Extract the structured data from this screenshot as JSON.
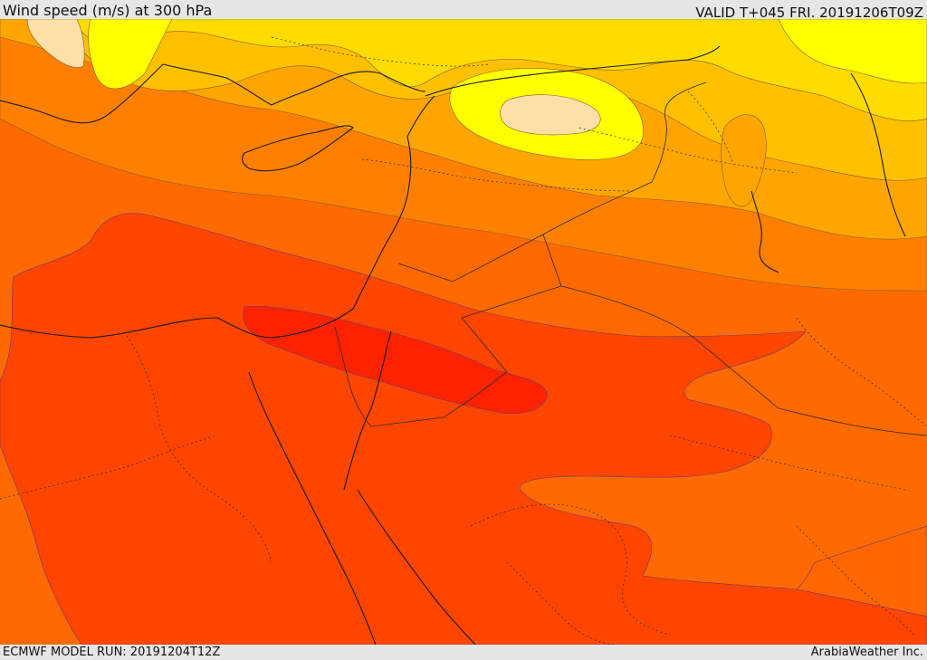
{
  "header": {
    "title": "Wind speed (m/s) at 300 hPa",
    "valid_time": "VALID T+045 FRI. 20191206T09Z"
  },
  "footer": {
    "model_run": "ECMWF MODEL RUN: 20191204T12Z",
    "credit": "ArabiaWeather Inc."
  },
  "map": {
    "variable": "wind speed",
    "units": "m/s",
    "pressure_level_hPa": 300,
    "palette": {
      "band_1": "#ffe0a8",
      "band_2": "#ffff00",
      "band_3": "#ffdc00",
      "band_4": "#ffc000",
      "band_5": "#ffa500",
      "band_6": "#ff8000",
      "band_7": "#ff6600",
      "band_8": "#ff4500",
      "band_9": "#ff2200"
    }
  }
}
